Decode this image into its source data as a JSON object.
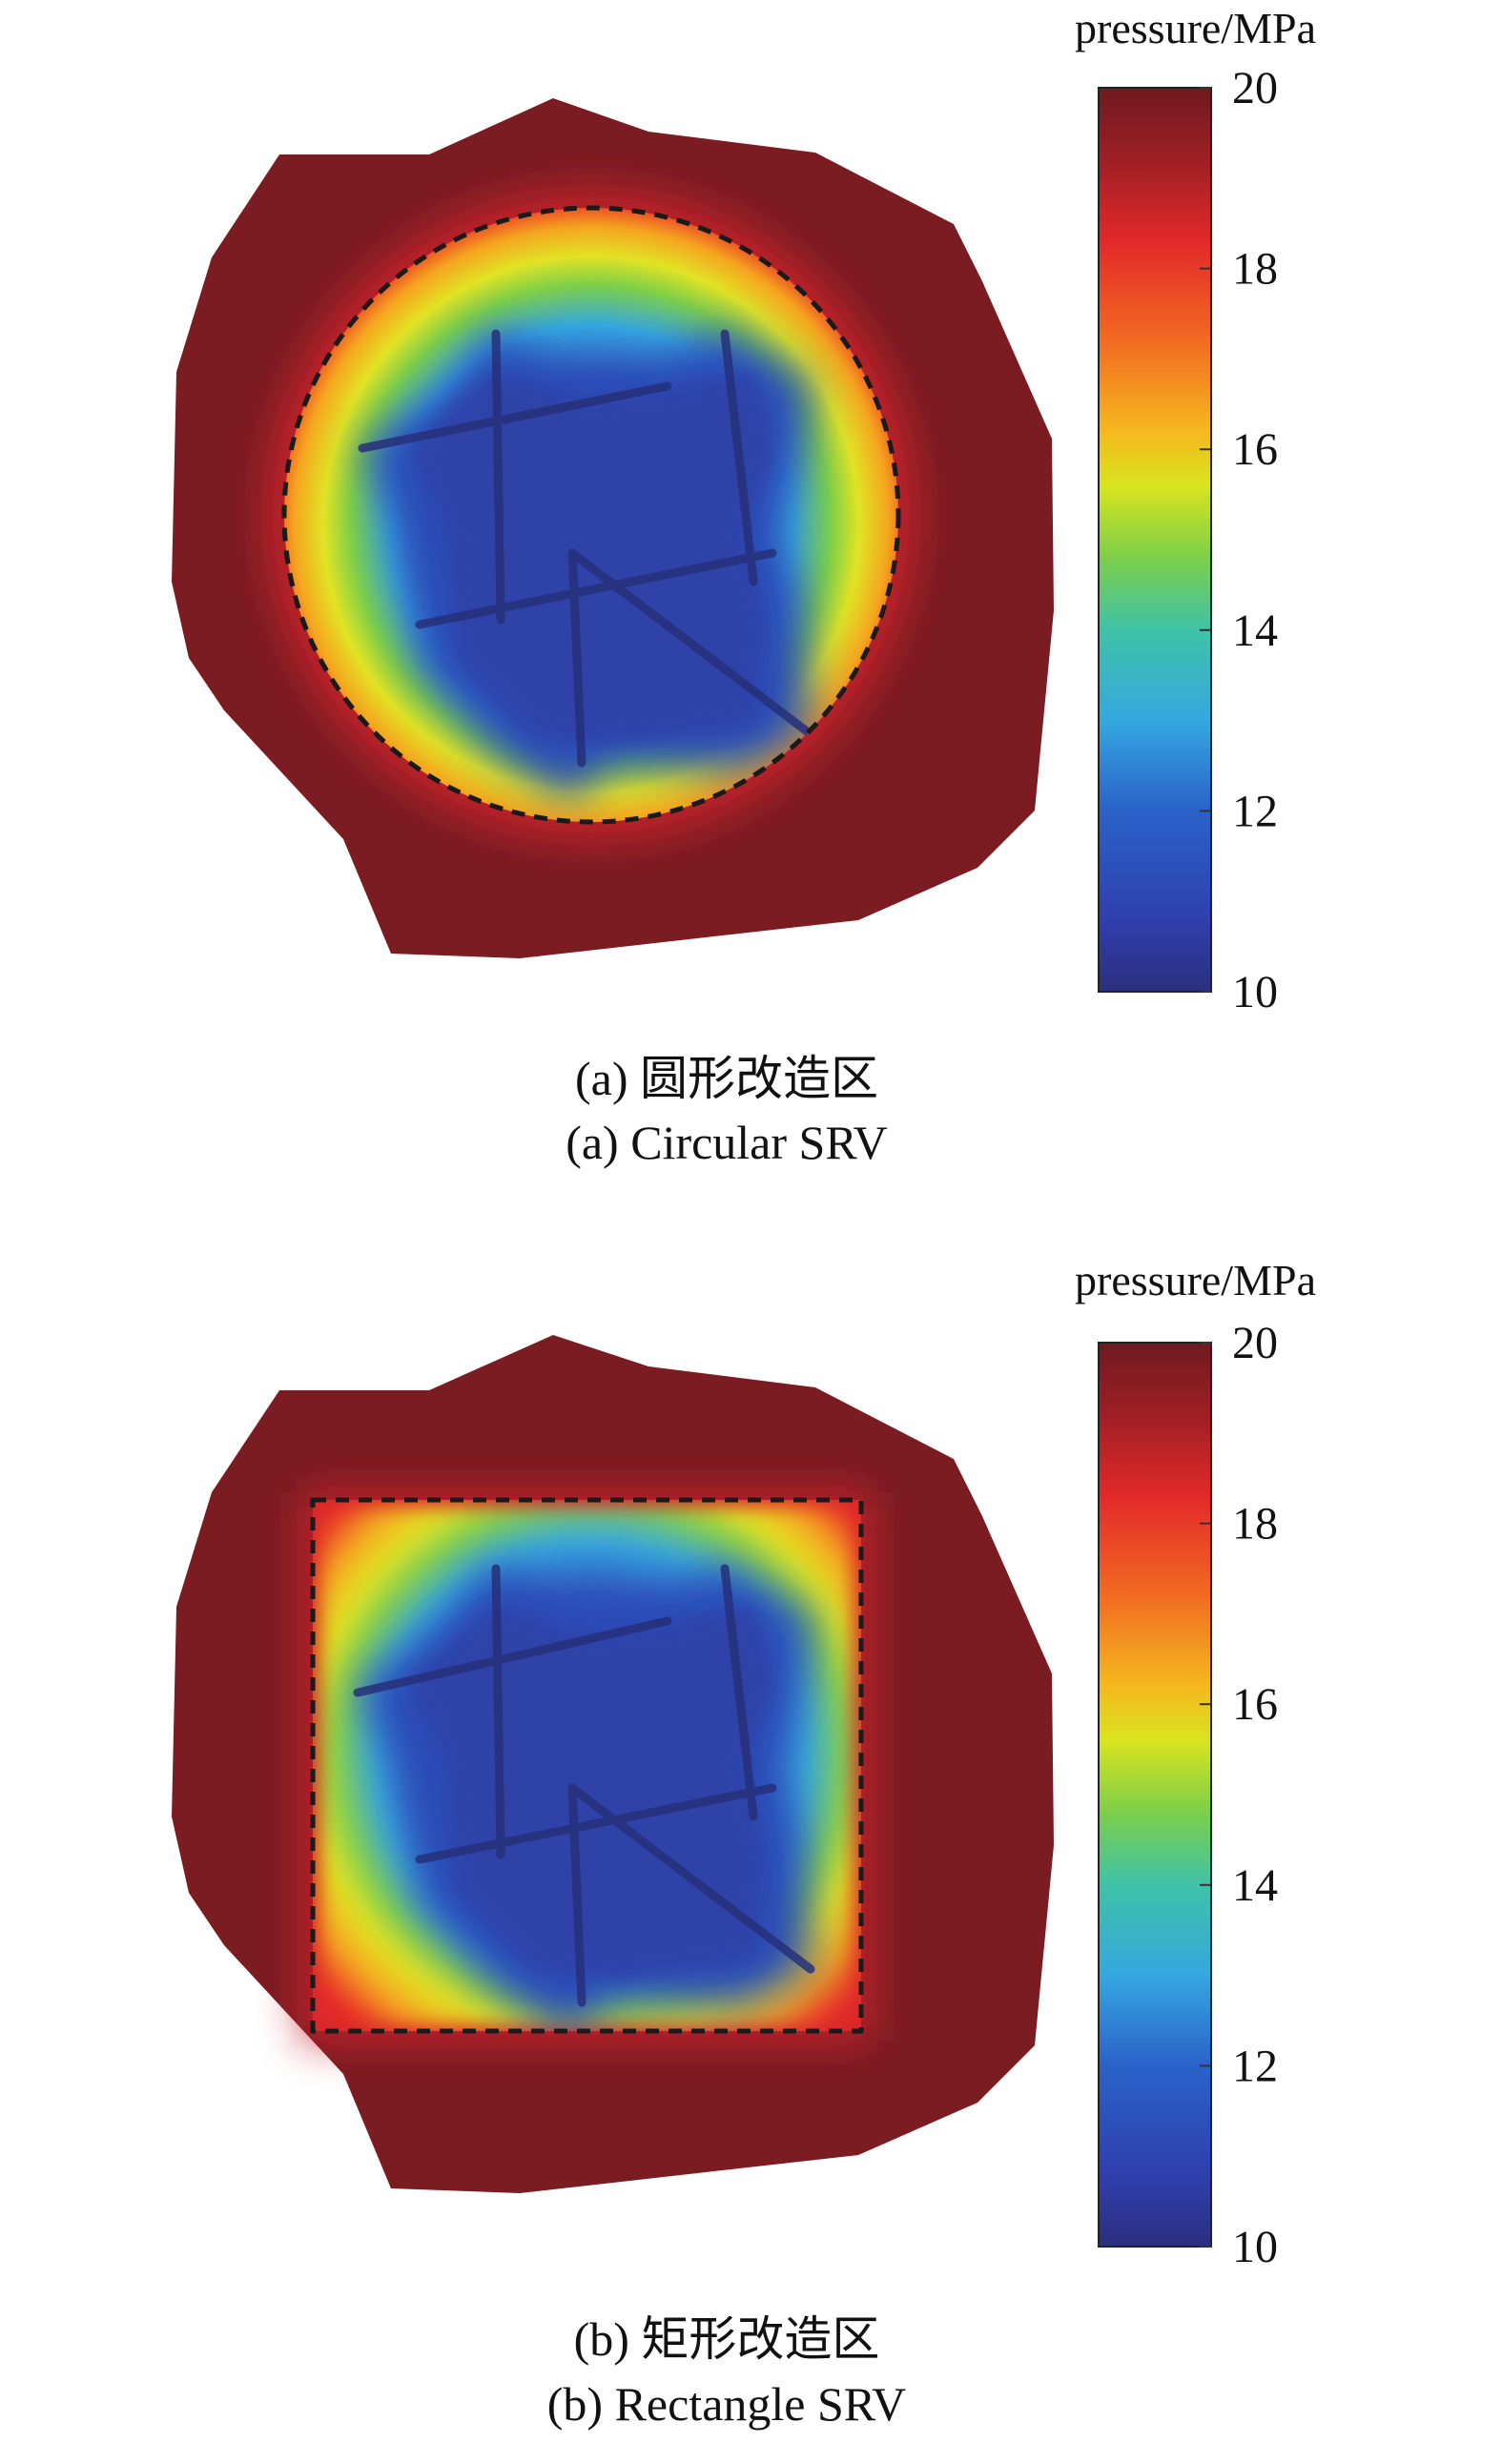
{
  "chart_data": [
    {
      "type": "heatmap",
      "panel": "a",
      "caption_cn": "(a) 圆形改造区",
      "caption_en": "(a) Circular SRV",
      "colorbar": {
        "title": "pressure/MPa",
        "min": 10,
        "max": 20,
        "ticks": [
          20,
          18,
          16,
          14,
          12,
          10
        ]
      },
      "srv_boundary": "circle (dashed)",
      "colors": {
        "high": "#7a1c22",
        "low": "#2e3da0"
      }
    },
    {
      "type": "heatmap",
      "panel": "b",
      "caption_cn": "(b) 矩形改造区",
      "caption_en": "(b) Rectangle SRV",
      "colorbar": {
        "title": "pressure/MPa",
        "min": 10,
        "max": 20,
        "ticks": [
          20,
          18,
          16,
          14,
          12,
          10
        ]
      },
      "srv_boundary": "rectangle (dashed)",
      "colors": {
        "high": "#7a1c22",
        "low": "#2e3da0"
      }
    }
  ]
}
